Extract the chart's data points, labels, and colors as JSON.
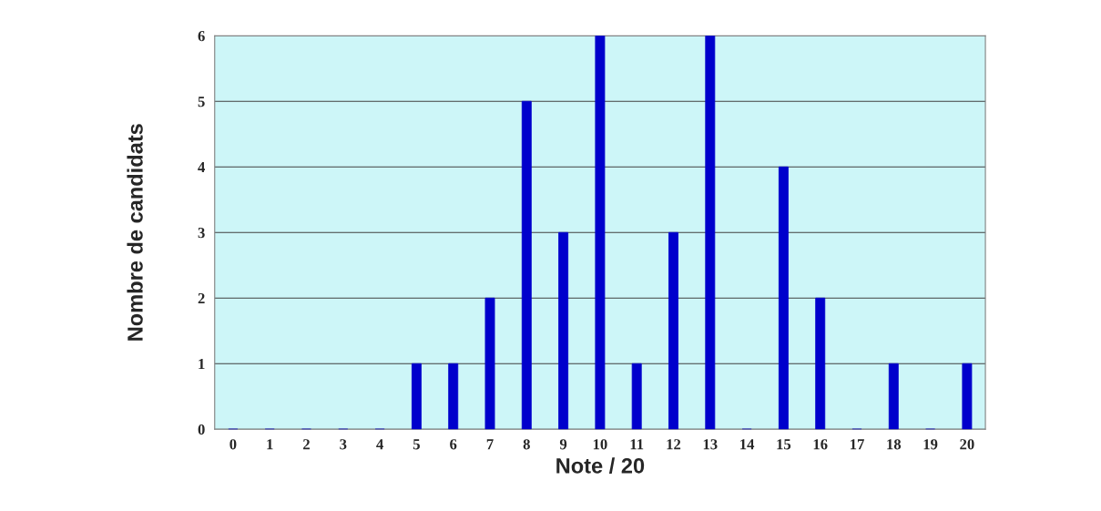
{
  "chart_data": {
    "type": "bar",
    "xlabel": "Note / 20",
    "ylabel": "Nombre de candidats",
    "categories": [
      "0",
      "1",
      "2",
      "3",
      "4",
      "5",
      "6",
      "7",
      "8",
      "9",
      "10",
      "11",
      "12",
      "13",
      "14",
      "15",
      "16",
      "17",
      "18",
      "19",
      "20"
    ],
    "values": [
      0,
      0,
      0,
      0,
      0,
      1,
      1,
      2,
      5,
      3,
      6,
      1,
      3,
      6,
      0,
      4,
      2,
      0,
      1,
      0,
      1
    ],
    "color": "#0000cc",
    "ylim": [
      0,
      6
    ],
    "yticks": [
      0,
      1,
      2,
      3,
      4,
      5,
      6
    ],
    "grid": "y",
    "legend": false
  }
}
